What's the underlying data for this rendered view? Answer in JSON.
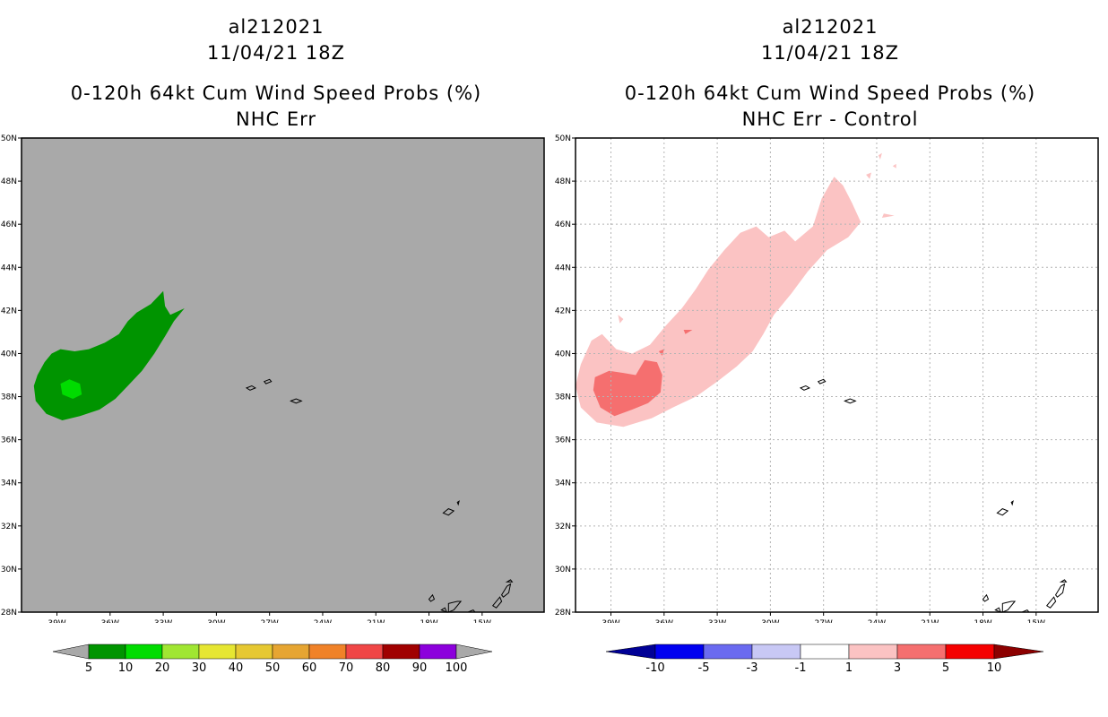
{
  "left_panel": {
    "storm_id": "al212021",
    "datetime": "11/04/21 18Z",
    "product": "0-120h 64kt Cum Wind Speed Probs (%)",
    "variant": "NHC Err"
  },
  "right_panel": {
    "storm_id": "al212021",
    "datetime": "11/04/21 18Z",
    "product": "0-120h 64kt Cum Wind Speed Probs (%)",
    "variant": "NHC Err - Control"
  },
  "colors": {
    "plot_bg_left": "#a9a9a9",
    "contour_5": "#009400",
    "contour_10": "#00dc00",
    "diff_1": "#fbc3c3",
    "diff_3": "#f56f6f",
    "land_outline": "#000000"
  },
  "chart_data": [
    {
      "type": "heatmap",
      "title": "0-120h 64kt Cum Wind Speed Probs (%) NHC Err",
      "xlabel": "",
      "ylabel": "",
      "xlim": [
        -41,
        -11.5
      ],
      "ylim": [
        28,
        50
      ],
      "x_ticks": [
        -39,
        -36,
        -33,
        -30,
        -27,
        -24,
        -21,
        -18,
        -15
      ],
      "x_tick_labels": [
        "39W",
        "36W",
        "33W",
        "30W",
        "27W",
        "24W",
        "21W",
        "18W",
        "15W"
      ],
      "y_ticks": [
        28,
        30,
        32,
        34,
        36,
        38,
        40,
        42,
        44,
        46,
        48,
        50
      ],
      "y_tick_labels": [
        "28N",
        "30N",
        "32N",
        "34N",
        "36N",
        "38N",
        "40N",
        "42N",
        "44N",
        "46N",
        "48N",
        "50N"
      ],
      "grid": false,
      "colorbar": {
        "levels": [
          "5",
          "10",
          "20",
          "30",
          "40",
          "50",
          "60",
          "70",
          "80",
          "90",
          "100"
        ],
        "colors": [
          "#009400",
          "#00dc00",
          "#a0e632",
          "#e6e632",
          "#e6c832",
          "#e6a532",
          "#f08228",
          "#f04646",
          "#a00000",
          "#8c00dc"
        ],
        "end_color": "#a9a9a9"
      },
      "regions": [
        {
          "level": "5-10%",
          "color": "#009400",
          "polygon": [
            [
              -40.1,
              39.0
            ],
            [
              -39.7,
              39.6
            ],
            [
              -39.3,
              40.0
            ],
            [
              -38.8,
              40.2
            ],
            [
              -38.0,
              40.1
            ],
            [
              -37.2,
              40.2
            ],
            [
              -36.3,
              40.5
            ],
            [
              -35.5,
              40.9
            ],
            [
              -35.0,
              41.5
            ],
            [
              -34.5,
              41.9
            ],
            [
              -33.7,
              42.3
            ],
            [
              -33.0,
              42.9
            ],
            [
              -32.9,
              42.2
            ],
            [
              -32.6,
              41.8
            ],
            [
              -31.8,
              42.1
            ],
            [
              -32.4,
              41.5
            ],
            [
              -32.9,
              40.8
            ],
            [
              -33.5,
              40.0
            ],
            [
              -34.2,
              39.2
            ],
            [
              -35.0,
              38.5
            ],
            [
              -35.7,
              37.9
            ],
            [
              -36.6,
              37.4
            ],
            [
              -37.7,
              37.1
            ],
            [
              -38.7,
              36.9
            ],
            [
              -39.6,
              37.2
            ],
            [
              -40.2,
              37.8
            ],
            [
              -40.3,
              38.5
            ]
          ]
        },
        {
          "level": "10-20%",
          "color": "#00dc00",
          "polygon": [
            [
              -38.8,
              38.6
            ],
            [
              -38.3,
              38.8
            ],
            [
              -37.7,
              38.6
            ],
            [
              -37.6,
              38.1
            ],
            [
              -38.1,
              37.9
            ],
            [
              -38.7,
              38.1
            ]
          ]
        }
      ]
    },
    {
      "type": "heatmap",
      "title": "0-120h 64kt Cum Wind Speed Probs (%) NHC Err - Control",
      "xlabel": "",
      "ylabel": "",
      "xlim": [
        -41,
        -11.5
      ],
      "ylim": [
        28,
        50
      ],
      "x_ticks": [
        -39,
        -36,
        -33,
        -30,
        -27,
        -24,
        -21,
        -18,
        -15
      ],
      "x_tick_labels": [
        "39W",
        "36W",
        "33W",
        "30W",
        "27W",
        "24W",
        "21W",
        "18W",
        "15W"
      ],
      "y_ticks": [
        28,
        30,
        32,
        34,
        36,
        38,
        40,
        42,
        44,
        46,
        48,
        50
      ],
      "y_tick_labels": [
        "28N",
        "30N",
        "32N",
        "34N",
        "36N",
        "38N",
        "40N",
        "42N",
        "44N",
        "46N",
        "48N",
        "50N"
      ],
      "grid": true,
      "colorbar": {
        "levels": [
          "-10",
          "-5",
          "-3",
          "-1",
          "1",
          "3",
          "5",
          "10"
        ],
        "colors": [
          "#0000f0",
          "#6a6af0",
          "#c8c8f5",
          "#ffffff",
          "#fbc3c3",
          "#f56f6f",
          "#f50000"
        ],
        "low_end_color": "#000096",
        "high_end_color": "#8c0000"
      },
      "regions": [
        {
          "level": "1-3",
          "color": "#fbc3c3",
          "polygon": [
            [
              -41.0,
              38.5
            ],
            [
              -40.7,
              39.5
            ],
            [
              -40.1,
              40.6
            ],
            [
              -39.5,
              40.9
            ],
            [
              -38.7,
              40.2
            ],
            [
              -37.8,
              40.0
            ],
            [
              -36.8,
              40.4
            ],
            [
              -35.9,
              41.3
            ],
            [
              -35.0,
              42.1
            ],
            [
              -34.2,
              43.0
            ],
            [
              -33.5,
              43.9
            ],
            [
              -32.6,
              44.8
            ],
            [
              -31.7,
              45.6
            ],
            [
              -30.8,
              45.9
            ],
            [
              -30.1,
              45.4
            ],
            [
              -29.2,
              45.7
            ],
            [
              -28.6,
              45.2
            ],
            [
              -27.6,
              45.9
            ],
            [
              -27.1,
              47.2
            ],
            [
              -26.4,
              48.2
            ],
            [
              -25.9,
              47.8
            ],
            [
              -25.4,
              47.0
            ],
            [
              -24.9,
              46.1
            ],
            [
              -25.6,
              45.4
            ],
            [
              -26.8,
              44.8
            ],
            [
              -27.9,
              43.8
            ],
            [
              -28.8,
              42.8
            ],
            [
              -29.8,
              41.8
            ],
            [
              -30.4,
              40.9
            ],
            [
              -31.0,
              40.1
            ],
            [
              -31.9,
              39.4
            ],
            [
              -33.0,
              38.7
            ],
            [
              -34.2,
              38.0
            ],
            [
              -35.5,
              37.5
            ],
            [
              -36.7,
              37.0
            ],
            [
              -38.3,
              36.6
            ],
            [
              -39.8,
              36.8
            ],
            [
              -40.7,
              37.5
            ]
          ]
        },
        {
          "level": "1-3",
          "color": "#fbc3c3",
          "polygon": [
            [
              -38.6,
              41.8
            ],
            [
              -38.3,
              41.6
            ],
            [
              -38.5,
              41.4
            ]
          ]
        },
        {
          "level": "1-3",
          "color": "#fbc3c3",
          "polygon": [
            [
              -23.6,
              46.5
            ],
            [
              -23.0,
              46.4
            ],
            [
              -23.7,
              46.3
            ]
          ]
        },
        {
          "level": "1-3",
          "color": "#fbc3c3",
          "polygon": [
            [
              -24.6,
              48.3
            ],
            [
              -24.3,
              48.4
            ],
            [
              -24.4,
              48.1
            ]
          ]
        },
        {
          "level": "1-3",
          "color": "#fbc3c3",
          "polygon": [
            [
              -23.9,
              49.2
            ],
            [
              -23.7,
              49.3
            ],
            [
              -23.8,
              49.0
            ]
          ]
        },
        {
          "level": "1-3",
          "color": "#fbc3c3",
          "polygon": [
            [
              -23.1,
              48.7
            ],
            [
              -22.9,
              48.8
            ],
            [
              -22.9,
              48.6
            ]
          ]
        },
        {
          "level": "3-5",
          "color": "#f56f6f",
          "polygon": [
            [
              -39.9,
              38.9
            ],
            [
              -39.1,
              39.2
            ],
            [
              -38.3,
              39.1
            ],
            [
              -37.6,
              39.0
            ],
            [
              -37.1,
              39.7
            ],
            [
              -36.4,
              39.6
            ],
            [
              -36.1,
              39.0
            ],
            [
              -36.2,
              38.2
            ],
            [
              -36.9,
              37.7
            ],
            [
              -37.8,
              37.4
            ],
            [
              -38.8,
              37.1
            ],
            [
              -39.6,
              37.5
            ],
            [
              -40.0,
              38.3
            ]
          ]
        },
        {
          "level": "3-5",
          "color": "#f56f6f",
          "polygon": [
            [
              -36.3,
              40.1
            ],
            [
              -36.0,
              40.2
            ],
            [
              -36.1,
              39.9
            ]
          ]
        },
        {
          "level": "3-5",
          "color": "#f56f6f",
          "polygon": [
            [
              -34.9,
              41.1
            ],
            [
              -34.4,
              41.1
            ],
            [
              -34.8,
              40.9
            ]
          ]
        }
      ]
    }
  ],
  "land": [
    [
      [
        -28.3,
        38.4
      ],
      [
        -28.0,
        38.5
      ],
      [
        -27.8,
        38.4
      ],
      [
        -28.1,
        38.3
      ]
    ],
    [
      [
        -27.3,
        38.7
      ],
      [
        -27.0,
        38.8
      ],
      [
        -26.9,
        38.7
      ],
      [
        -27.2,
        38.6
      ]
    ],
    [
      [
        -25.8,
        37.8
      ],
      [
        -25.5,
        37.9
      ],
      [
        -25.2,
        37.8
      ],
      [
        -25.5,
        37.7
      ]
    ],
    [
      [
        -17.2,
        32.6
      ],
      [
        -16.9,
        32.8
      ],
      [
        -16.6,
        32.7
      ],
      [
        -16.9,
        32.5
      ]
    ],
    [
      [
        -16.4,
        33.1
      ],
      [
        -16.3,
        33.15
      ],
      [
        -16.35,
        33.0
      ]
    ],
    [
      [
        -18.0,
        28.6
      ],
      [
        -17.8,
        28.8
      ],
      [
        -17.7,
        28.6
      ],
      [
        -17.9,
        28.5
      ]
    ],
    [
      [
        -17.3,
        28.1
      ],
      [
        -17.1,
        28.2
      ],
      [
        -17.0,
        28.0
      ]
    ],
    [
      [
        -16.9,
        28.4
      ],
      [
        -16.4,
        28.5
      ],
      [
        -16.2,
        28.5
      ],
      [
        -16.6,
        28.1
      ],
      [
        -16.9,
        28.0
      ]
    ],
    [
      [
        -15.8,
        28.0
      ],
      [
        -15.5,
        28.1
      ],
      [
        -15.4,
        28.0
      ]
    ],
    [
      [
        -14.4,
        28.3
      ],
      [
        -14.0,
        28.7
      ],
      [
        -13.9,
        28.5
      ],
      [
        -14.2,
        28.2
      ]
    ],
    [
      [
        -13.9,
        28.8
      ],
      [
        -13.6,
        29.2
      ],
      [
        -13.4,
        29.3
      ],
      [
        -13.5,
        28.9
      ],
      [
        -13.8,
        28.7
      ]
    ],
    [
      [
        -13.6,
        29.4
      ],
      [
        -13.4,
        29.5
      ],
      [
        -13.3,
        29.4
      ]
    ]
  ]
}
